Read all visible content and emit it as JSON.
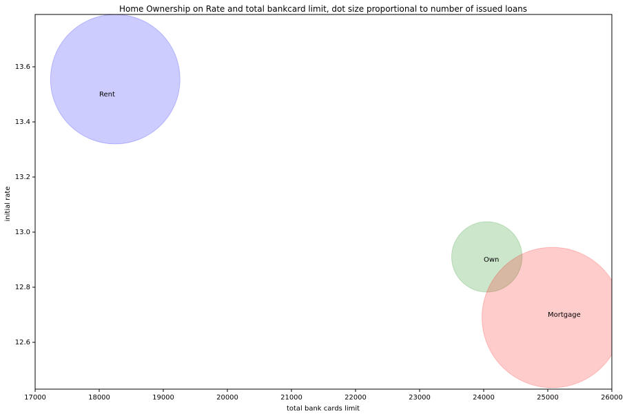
{
  "chart_data": {
    "type": "scatter",
    "title": "Home Ownership on Rate and total bankcard limit, dot size proportional to number of issued loans",
    "xlabel": "total bank cards limit",
    "ylabel": "initial rate",
    "xlim": [
      17000,
      26000
    ],
    "ylim": [
      12.43,
      13.79
    ],
    "xticks": [
      17000,
      18000,
      19000,
      20000,
      21000,
      22000,
      23000,
      24000,
      25000,
      26000
    ],
    "yticks": [
      12.6,
      12.8,
      13.0,
      13.2,
      13.4,
      13.6
    ],
    "xtick_labels": [
      "17000",
      "18000",
      "19000",
      "20000",
      "21000",
      "22000",
      "23000",
      "24000",
      "25000",
      "26000"
    ],
    "ytick_labels": [
      "12.6",
      "12.8",
      "13.0",
      "13.2",
      "13.4",
      "13.6"
    ],
    "grid": false,
    "points": [
      {
        "label": "Rent",
        "x": 18250,
        "y": 13.555,
        "size": 1.0,
        "color": "#0000ff",
        "label_x": 18000,
        "label_y": 13.5
      },
      {
        "label": "Own",
        "x": 24050,
        "y": 12.91,
        "size": 0.296,
        "color": "#008000",
        "label_x": 24000,
        "label_y": 12.9
      },
      {
        "label": "Mortgage",
        "x": 25070,
        "y": 12.69,
        "size": 1.176,
        "color": "#ff0000",
        "label_x": 25000,
        "label_y": 12.7
      }
    ]
  }
}
